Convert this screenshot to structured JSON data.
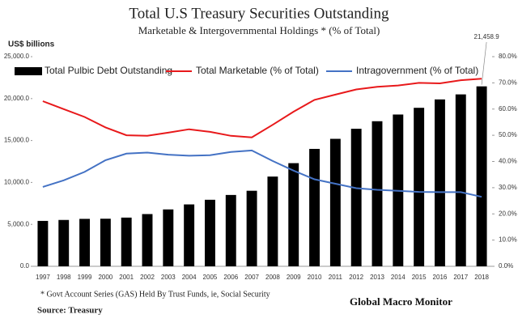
{
  "chart_data": {
    "type": "bar",
    "title": "Total U.S Treasury Securities Outstanding",
    "subtitle": "Marketable & Intergovernmental Holdings *  (% of Total)",
    "y_label": "US$ billions",
    "footnote": "* Govt Account Series (GAS) Held By Trust Funds, ie, Social Security",
    "source": "Source:  Treasury",
    "watermark": "Global Macro Monitor",
    "categories": [
      "1997",
      "1998",
      "1999",
      "2000",
      "2001",
      "2002",
      "2003",
      "2004",
      "2005",
      "2006",
      "2007",
      "2008",
      "2009",
      "2010",
      "2011",
      "2012",
      "2013",
      "2014",
      "2015",
      "2016",
      "2017",
      "2018"
    ],
    "series": [
      {
        "name": "Total Pulbic Debt Outstanding",
        "type": "bar",
        "color": "#000000",
        "values": [
          5413,
          5526,
          5656,
          5674,
          5807,
          6228,
          6783,
          7379,
          7933,
          8507,
          9008,
          10700,
          12300,
          14000,
          15200,
          16400,
          17300,
          18100,
          18900,
          19900,
          20500,
          21458.9
        ],
        "value_labels": [
          null,
          null,
          null,
          null,
          null,
          null,
          null,
          null,
          null,
          null,
          null,
          null,
          null,
          null,
          null,
          null,
          null,
          null,
          null,
          null,
          null,
          "21,458.9"
        ]
      },
      {
        "name": "Total Marketable (% of Total)",
        "type": "line",
        "axis": "y2",
        "color": "#e8191b",
        "values": [
          63,
          60,
          57,
          53,
          50,
          49.8,
          51,
          52.3,
          51.3,
          49.8,
          49.2,
          54,
          59,
          63.5,
          65.5,
          67.5,
          68.5,
          69,
          70,
          69.8,
          71,
          71.6
        ]
      },
      {
        "name": "Intragovernment (% of Total)",
        "type": "line",
        "axis": "y2",
        "color": "#4472c4",
        "values": [
          30.3,
          32.8,
          36,
          40.5,
          43,
          43.4,
          42.6,
          42.2,
          42.4,
          43.6,
          44.2,
          40.2,
          36.5,
          33.2,
          31.5,
          29.8,
          29.2,
          28.8,
          28.4,
          28.3,
          28.3,
          26.5
        ]
      }
    ],
    "ylim": [
      0,
      25000
    ],
    "yticks": [
      {
        "value": 0,
        "label": "0.0"
      },
      {
        "value": 5000,
        "label": "5,000.0"
      },
      {
        "value": 10000,
        "label": "10,000.0"
      },
      {
        "value": 15000,
        "label": "15,000.0"
      },
      {
        "value": 20000,
        "label": "20,000.0"
      },
      {
        "value": 25000,
        "label": "25,000.0"
      }
    ],
    "y2lim": [
      0,
      80
    ],
    "y2ticks": [
      {
        "value": 0,
        "label": "0.0%"
      },
      {
        "value": 10,
        "label": "10.0%"
      },
      {
        "value": 20,
        "label": "20.0%"
      },
      {
        "value": 30,
        "label": "30.0%"
      },
      {
        "value": 40,
        "label": "40.0%"
      },
      {
        "value": 50,
        "label": "50.0%"
      },
      {
        "value": 60,
        "label": "60.0%"
      },
      {
        "value": 70,
        "label": "70.0%"
      },
      {
        "value": 80,
        "label": "80.0%"
      }
    ],
    "grid": false
  }
}
